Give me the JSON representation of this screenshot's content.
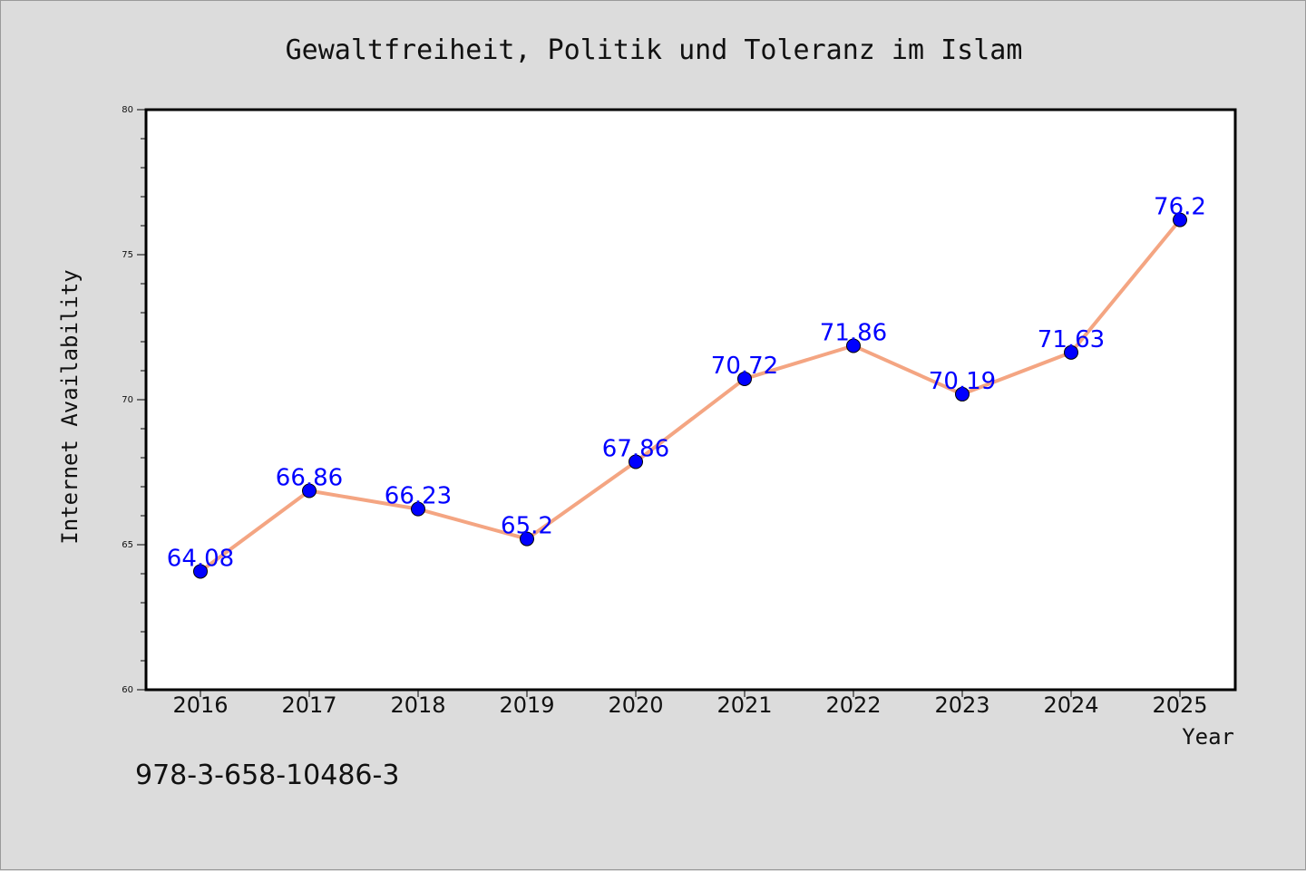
{
  "chart_data": {
    "type": "line",
    "title": "Gewaltfreiheit, Politik und Toleranz im Islam",
    "xlabel": "Year",
    "ylabel": "Internet Availability",
    "categories": [
      "2016",
      "2017",
      "2018",
      "2019",
      "2020",
      "2021",
      "2022",
      "2023",
      "2024",
      "2025"
    ],
    "values": [
      64.08,
      66.86,
      66.23,
      65.2,
      67.86,
      70.72,
      71.86,
      70.19,
      71.63,
      76.2
    ],
    "data_labels": [
      "64.08",
      "66.86",
      "66.23",
      "65.2",
      "67.86",
      "70.72",
      "71.86",
      "70.19",
      "71.63",
      "76.2"
    ],
    "ylim": [
      60,
      80
    ],
    "yticks": [
      "60",
      "65",
      "70",
      "75",
      "80"
    ],
    "grid": false,
    "legend": "none",
    "line_color": "#f4a582",
    "marker_color": "#0000ff",
    "label_color": "#0000ff"
  },
  "footer": {
    "isbn": "978-3-658-10486-3"
  }
}
